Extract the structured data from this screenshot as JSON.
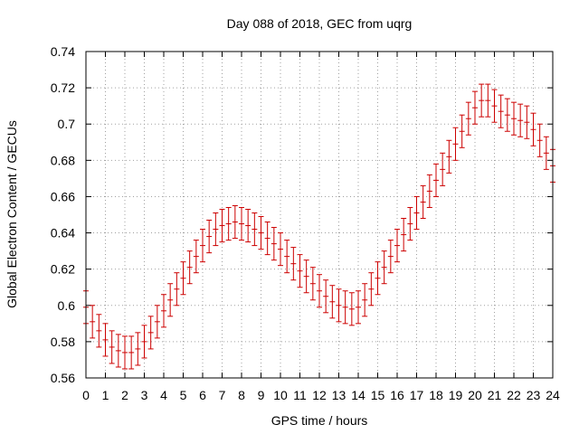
{
  "chart_data": {
    "type": "scatter",
    "title": "Day 088 of 2018, GEC from uqrg",
    "xlabel": "GPS time / hours",
    "ylabel": "Global Electron Content / GECUs",
    "xlim": [
      0,
      24
    ],
    "ylim": [
      0.56,
      0.74
    ],
    "x_ticks": [
      0,
      1,
      2,
      3,
      4,
      5,
      6,
      7,
      8,
      9,
      10,
      11,
      12,
      13,
      14,
      15,
      16,
      17,
      18,
      19,
      20,
      21,
      22,
      23,
      24
    ],
    "y_ticks": [
      0.56,
      0.58,
      0.6,
      0.62,
      0.64,
      0.66,
      0.68,
      0.7,
      0.72,
      0.74
    ],
    "y_tick_labels": [
      "0.56",
      "0.58",
      "0.6",
      "0.62",
      "0.64",
      "0.66",
      "0.68",
      "0.7",
      "0.72",
      "0.74"
    ],
    "grid": true,
    "series": [
      {
        "color": "#cc0000",
        "error": 0.009,
        "x": [
          0,
          0.333,
          0.667,
          1,
          1.333,
          1.667,
          2,
          2.333,
          2.667,
          3,
          3.333,
          3.667,
          4,
          4.333,
          4.667,
          5,
          5.333,
          5.667,
          6,
          6.333,
          6.667,
          7,
          7.333,
          7.667,
          8,
          8.333,
          8.667,
          9,
          9.333,
          9.667,
          10,
          10.333,
          10.667,
          11,
          11.333,
          11.667,
          12,
          12.333,
          12.667,
          13,
          13.333,
          13.667,
          14,
          14.333,
          14.667,
          15,
          15.333,
          15.667,
          16,
          16.333,
          16.667,
          17,
          17.333,
          17.667,
          18,
          18.333,
          18.667,
          19,
          19.333,
          19.667,
          20,
          20.333,
          20.667,
          21,
          21.333,
          21.667,
          22,
          22.333,
          22.667,
          23,
          23.333,
          23.667,
          24
        ],
        "y": [
          0.599,
          0.591,
          0.586,
          0.581,
          0.577,
          0.575,
          0.574,
          0.574,
          0.576,
          0.58,
          0.585,
          0.591,
          0.597,
          0.603,
          0.609,
          0.615,
          0.621,
          0.627,
          0.633,
          0.638,
          0.642,
          0.644,
          0.645,
          0.646,
          0.645,
          0.644,
          0.642,
          0.64,
          0.637,
          0.634,
          0.631,
          0.627,
          0.623,
          0.619,
          0.616,
          0.612,
          0.608,
          0.605,
          0.602,
          0.6,
          0.599,
          0.598,
          0.599,
          0.603,
          0.609,
          0.615,
          0.621,
          0.627,
          0.633,
          0.639,
          0.645,
          0.651,
          0.657,
          0.663,
          0.669,
          0.675,
          0.682,
          0.689,
          0.696,
          0.703,
          0.709,
          0.713,
          0.713,
          0.71,
          0.707,
          0.705,
          0.703,
          0.702,
          0.701,
          0.697,
          0.691,
          0.684,
          0.677
        ]
      }
    ]
  }
}
